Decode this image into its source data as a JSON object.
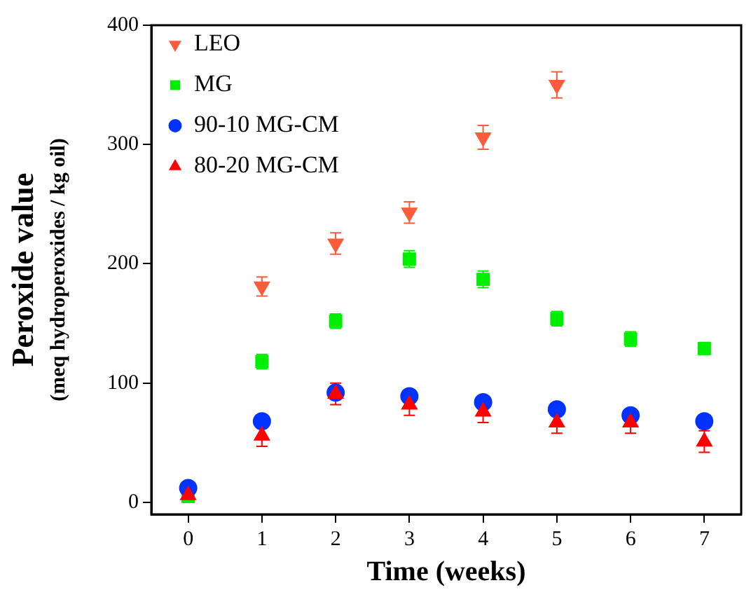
{
  "chart_data": {
    "type": "scatter",
    "xlabel": "Time (weeks)",
    "ylabel": "Peroxide value",
    "subtitle": "(meq hydroperoxides / kg oil)",
    "x": [
      0,
      1,
      2,
      3,
      4,
      5,
      6,
      7
    ],
    "series": [
      {
        "name": "LEO",
        "color": "#fa5c3c",
        "marker": "triangle-down",
        "values": [
          null,
          181,
          217,
          243,
          306,
          350,
          null,
          null
        ],
        "errors": [
          null,
          8,
          9,
          9,
          10,
          11,
          null,
          null
        ]
      },
      {
        "name": "MG",
        "color": "#00ee00",
        "marker": "square",
        "values": [
          5,
          118,
          152,
          204,
          187,
          154,
          137,
          129
        ],
        "errors": [
          null,
          6,
          6,
          7,
          7,
          6,
          6,
          5
        ]
      },
      {
        "name": "90-10 MG-CM",
        "color": "#0033ff",
        "marker": "circle",
        "values": [
          12,
          68,
          92,
          89,
          84,
          78,
          73,
          68
        ]
      },
      {
        "name": "80-20 MG-CM",
        "color": "#ff0000",
        "marker": "triangle",
        "values": [
          6,
          56,
          91,
          82,
          76,
          67,
          67,
          51
        ],
        "errors": [
          null,
          9,
          9,
          9,
          9,
          9,
          9,
          9
        ]
      }
    ],
    "xlim": [
      -0.5,
      7.5
    ],
    "xticks": [
      0,
      1,
      2,
      3,
      4,
      5,
      6,
      7
    ],
    "ylim": [
      -10,
      400
    ],
    "yticks": [
      0,
      100,
      200,
      300,
      400
    ],
    "grid": false,
    "legend": "top left"
  }
}
